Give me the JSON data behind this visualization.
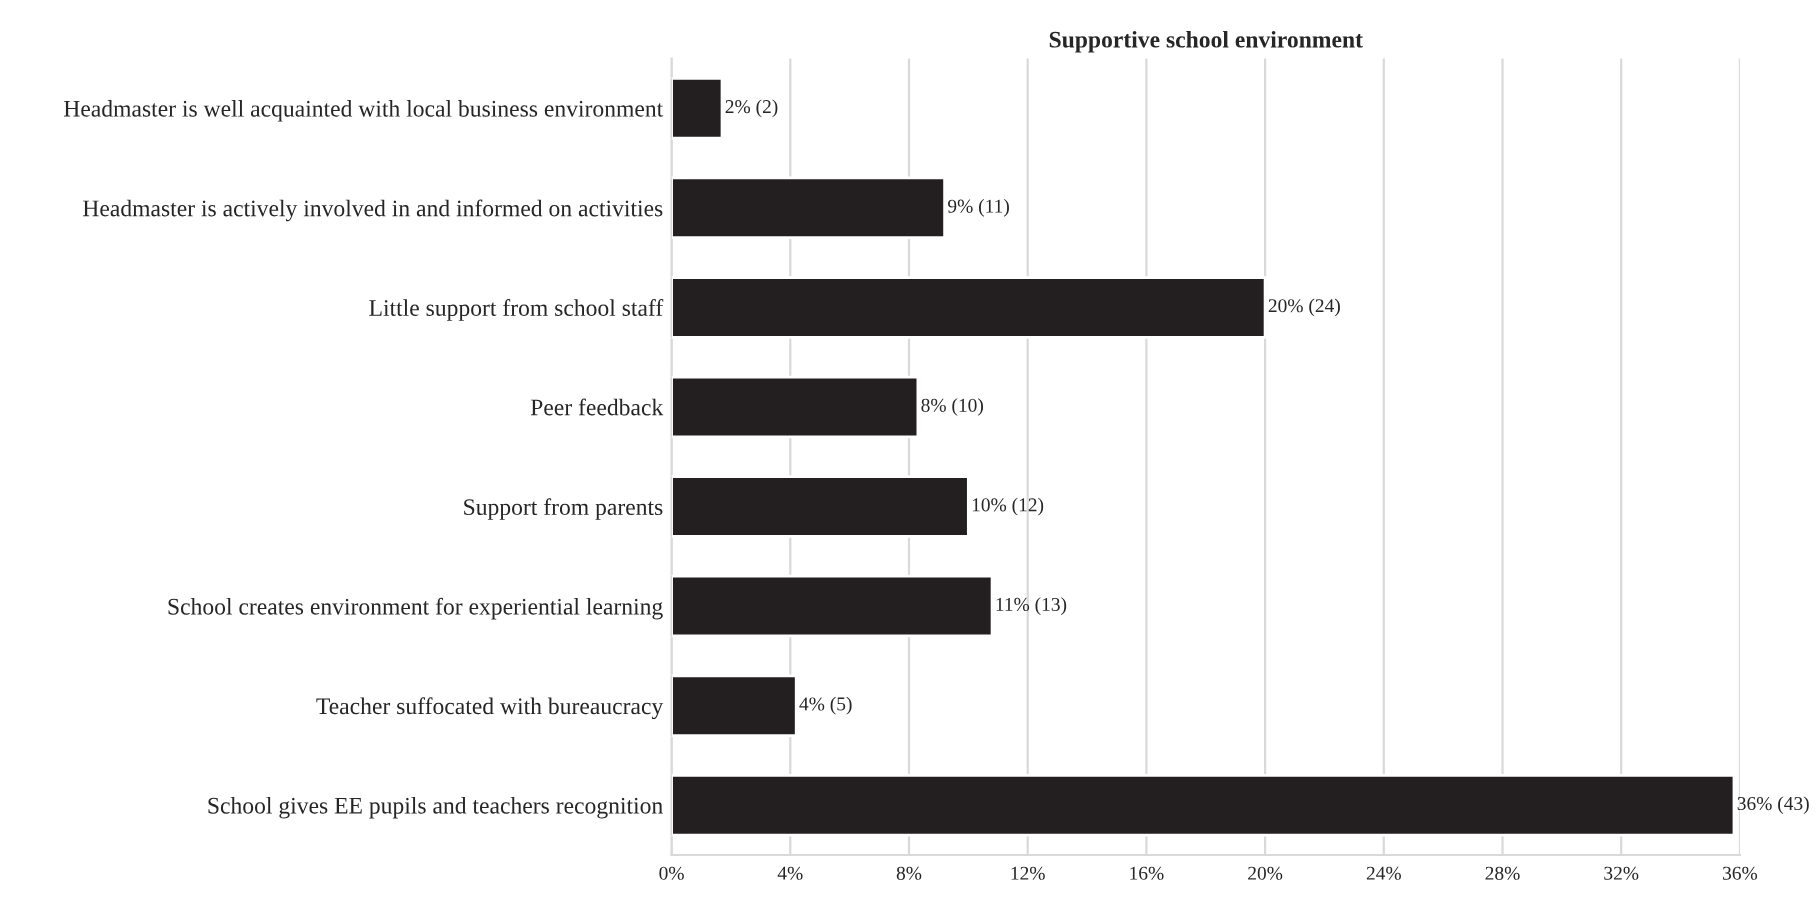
{
  "chart_data": {
    "type": "bar",
    "orientation": "horizontal",
    "title": "Supportive school environment",
    "categories": [
      "Headmaster is well acquainted with local business environment",
      "Headmaster is actively involved in and informed on activities",
      "Little support from school staff",
      "Peer feedback",
      "Support from parents",
      "School creates environment for experiential learning",
      "Teacher suffocated with bureaucracy",
      "School gives EE pupils and teachers recognition"
    ],
    "values": [
      1.7,
      9.2,
      20,
      8.3,
      10,
      10.8,
      4.2,
      35.8
    ],
    "value_labels": [
      "2% (2)",
      "9% (11)",
      "20% (24)",
      "8% (10)",
      "10% (12)",
      "11% (13)",
      "4% (5)",
      "36% (43)"
    ],
    "color": "#231f20",
    "xlim": [
      0,
      36
    ],
    "xticks": [
      {
        "value": 0,
        "label": "0%"
      },
      {
        "value": 4,
        "label": "4%"
      },
      {
        "value": 8,
        "label": "8%"
      },
      {
        "value": 12,
        "label": "12%"
      },
      {
        "value": 16,
        "label": "16%"
      },
      {
        "value": 20,
        "label": "20%"
      },
      {
        "value": 24,
        "label": "24%"
      },
      {
        "value": 28,
        "label": "28%"
      },
      {
        "value": 32,
        "label": "32%"
      },
      {
        "value": 36,
        "label": "36%"
      }
    ],
    "grid": "x",
    "legend": false
  }
}
